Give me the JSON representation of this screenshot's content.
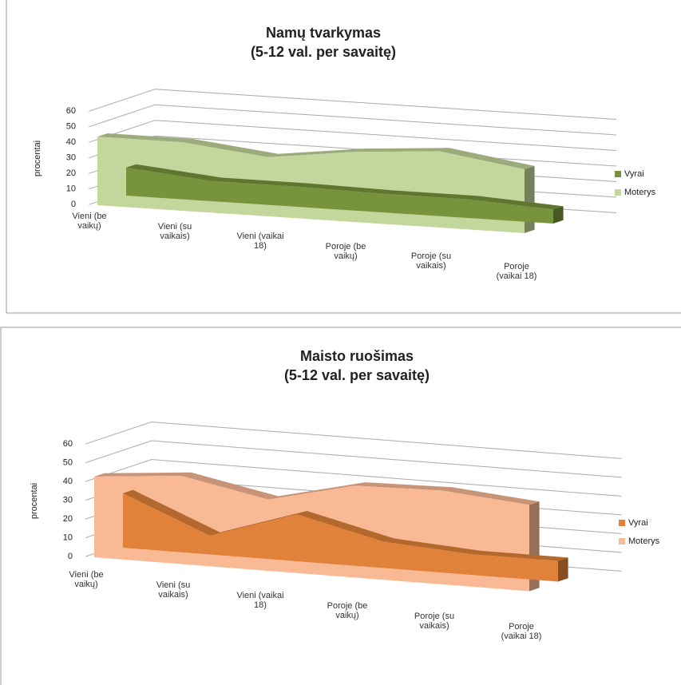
{
  "chart_data": [
    {
      "type": "area3d",
      "title": "Namų tvarkymas",
      "subtitle": "(5-12 val. per savaitę)",
      "y_label": "procentai",
      "categories": [
        "Vieni (be vaikų)",
        "Vieni (su vaikais)",
        "Vieni (vaikai 18)",
        "Poroje (be vaikų)",
        "Poroje (su vaikais)",
        "Poroje (vaikai 18)"
      ],
      "series": [
        {
          "name": "Vyrai",
          "color": "#77933c",
          "values": [
            18,
            13,
            13,
            12,
            12,
            9
          ]
        },
        {
          "name": "Moterys",
          "color": "#c3d69b",
          "values": [
            44,
            44,
            38,
            45,
            49,
            41
          ]
        }
      ],
      "ylim": [
        0,
        60
      ],
      "yticks": [
        0,
        10,
        20,
        30,
        40,
        50,
        60
      ],
      "grid": true,
      "legend": "right"
    },
    {
      "type": "area3d",
      "title": "Maisto ruošimas",
      "subtitle": "(5-12 val. per savaitę)",
      "y_label": "procentai",
      "categories": [
        "Vieni (be vaikų)",
        "Vieni (su vaikais)",
        "Vieni (vaikai 18)",
        "Poroje (be vaikų)",
        "Poroje (su vaikais)",
        "Poroje (vaikai 18)"
      ],
      "series": [
        {
          "name": "Vyrai",
          "color": "#e0823a",
          "values": [
            29,
            10,
            25,
            14,
            11,
            11
          ]
        },
        {
          "name": "Moterys",
          "color": "#fab995",
          "values": [
            43,
            47,
            38,
            49,
            50,
            46
          ]
        }
      ],
      "ylim": [
        0,
        60
      ],
      "yticks": [
        0,
        10,
        20,
        30,
        40,
        50,
        60
      ],
      "grid": true,
      "legend": "right"
    }
  ]
}
